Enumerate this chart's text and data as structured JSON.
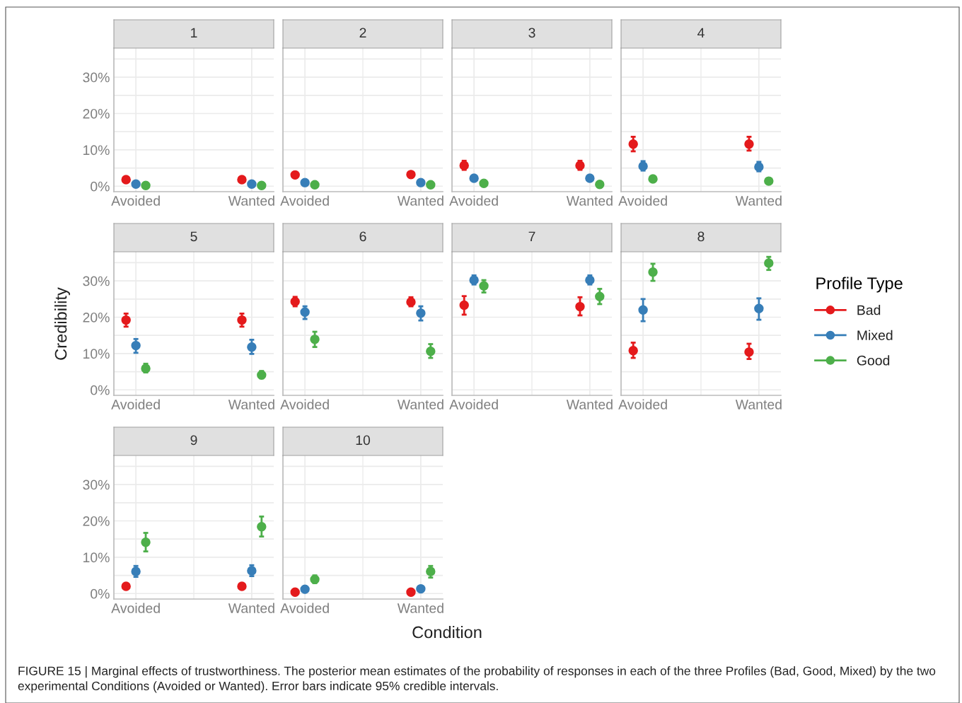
{
  "chart_data": [
    {
      "type": "scatter",
      "title": "1",
      "categories": [
        "Avoided",
        "Wanted"
      ],
      "ylim": [
        -1.5,
        38
      ],
      "yticks": [
        {
          "value": 0,
          "label": "0%"
        },
        {
          "value": 5,
          "label": null
        },
        {
          "value": 10,
          "label": "10%"
        },
        {
          "value": 15,
          "label": null
        },
        {
          "value": 20,
          "label": "20%"
        },
        {
          "value": 25,
          "label": null
        },
        {
          "value": 30,
          "label": "30%"
        },
        {
          "value": 35,
          "label": null
        }
      ],
      "grid": true,
      "marker": "circle",
      "legend": "right",
      "legend_title": "Profile Type",
      "series": [
        {
          "name": "Bad",
          "color": "#e41a1c",
          "values": [
            1.8,
            1.8
          ],
          "errors": [
            null,
            null
          ]
        },
        {
          "name": "Mixed",
          "color": "#377eb8",
          "values": [
            0.6,
            0.6
          ],
          "errors": [
            null,
            null
          ]
        },
        {
          "name": "Good",
          "color": "#4daf4a",
          "values": [
            0.2,
            0.2
          ],
          "errors": [
            null,
            null
          ]
        }
      ]
    },
    {
      "type": "scatter",
      "title": "2",
      "categories": [
        "Avoided",
        "Wanted"
      ],
      "ylim": [
        -1.5,
        38
      ],
      "yticks": [
        {
          "value": 0,
          "label": null
        },
        {
          "value": 5,
          "label": null
        },
        {
          "value": 10,
          "label": null
        },
        {
          "value": 15,
          "label": null
        },
        {
          "value": 20,
          "label": null
        },
        {
          "value": 25,
          "label": null
        },
        {
          "value": 30,
          "label": null
        },
        {
          "value": 35,
          "label": null
        }
      ],
      "grid": true,
      "marker": "circle",
      "tick_labels": "x",
      "series": [
        {
          "color": "#e41a1c",
          "values": [
            3.1,
            3.2
          ],
          "errors": [
            null,
            null
          ]
        },
        {
          "color": "#377eb8",
          "values": [
            1.0,
            1.0
          ],
          "errors": [
            null,
            null
          ]
        },
        {
          "color": "#4daf4a",
          "values": [
            0.4,
            0.4
          ],
          "errors": [
            null,
            null
          ]
        }
      ]
    },
    {
      "type": "scatter",
      "title": "3",
      "categories": [
        "Avoided",
        "Wanted"
      ],
      "ylim": [
        -1.5,
        38
      ],
      "yticks": [
        {
          "value": 0,
          "label": null
        },
        {
          "value": 5,
          "label": null
        },
        {
          "value": 10,
          "label": null
        },
        {
          "value": 15,
          "label": null
        },
        {
          "value": 20,
          "label": null
        },
        {
          "value": 25,
          "label": null
        },
        {
          "value": 30,
          "label": null
        },
        {
          "value": 35,
          "label": null
        }
      ],
      "grid": true,
      "marker": "circle",
      "tick_labels": "x",
      "series": [
        {
          "color": "#e41a1c",
          "values": [
            5.7,
            5.7
          ],
          "errors": [
            [
              4.5,
              7.0
            ],
            [
              4.5,
              7.0
            ]
          ]
        },
        {
          "color": "#377eb8",
          "values": [
            2.2,
            2.2
          ],
          "errors": [
            null,
            null
          ]
        },
        {
          "color": "#4daf4a",
          "values": [
            0.8,
            0.5
          ],
          "errors": [
            null,
            null
          ]
        }
      ]
    },
    {
      "type": "scatter",
      "title": "4",
      "categories": [
        "Avoided",
        "Wanted"
      ],
      "ylim": [
        -1.5,
        38
      ],
      "yticks": [
        {
          "value": 0,
          "label": null
        },
        {
          "value": 5,
          "label": null
        },
        {
          "value": 10,
          "label": null
        },
        {
          "value": 15,
          "label": null
        },
        {
          "value": 20,
          "label": null
        },
        {
          "value": 25,
          "label": null
        },
        {
          "value": 30,
          "label": null
        },
        {
          "value": 35,
          "label": null
        }
      ],
      "grid": true,
      "marker": "circle",
      "tick_labels": "x",
      "series": [
        {
          "color": "#e41a1c",
          "values": [
            11.6,
            11.6
          ],
          "errors": [
            [
              9.6,
              13.6
            ],
            [
              9.8,
              13.6
            ]
          ]
        },
        {
          "color": "#377eb8",
          "values": [
            5.5,
            5.3
          ],
          "errors": [
            [
              4.3,
              6.9
            ],
            [
              4.1,
              6.7
            ]
          ]
        },
        {
          "color": "#4daf4a",
          "values": [
            2.0,
            1.4
          ],
          "errors": [
            null,
            null
          ]
        }
      ]
    },
    {
      "type": "scatter",
      "title": "5",
      "categories": [
        "Avoided",
        "Wanted"
      ],
      "ylim": [
        -1.5,
        38
      ],
      "yticks": [
        {
          "value": 0,
          "label": "0%"
        },
        {
          "value": 5,
          "label": null
        },
        {
          "value": 10,
          "label": "10%"
        },
        {
          "value": 15,
          "label": null
        },
        {
          "value": 20,
          "label": "20%"
        },
        {
          "value": 25,
          "label": null
        },
        {
          "value": 30,
          "label": "30%"
        },
        {
          "value": 35,
          "label": null
        }
      ],
      "grid": true,
      "marker": "circle",
      "ylabel": "Credibility",
      "series": [
        {
          "color": "#e41a1c",
          "values": [
            19.2,
            19.2
          ],
          "errors": [
            [
              17.4,
              21.0
            ],
            [
              17.4,
              21.0
            ]
          ]
        },
        {
          "color": "#377eb8",
          "values": [
            12.2,
            11.8
          ],
          "errors": [
            [
              10.2,
              14.0
            ],
            [
              9.9,
              13.8
            ]
          ]
        },
        {
          "color": "#4daf4a",
          "values": [
            5.9,
            4.1
          ],
          "errors": [
            [
              4.8,
              7.2
            ],
            [
              3.2,
              5.2
            ]
          ]
        }
      ]
    },
    {
      "type": "scatter",
      "title": "6",
      "categories": [
        "Avoided",
        "Wanted"
      ],
      "ylim": [
        -1.5,
        38
      ],
      "yticks": [
        {
          "value": 0,
          "label": null
        },
        {
          "value": 5,
          "label": null
        },
        {
          "value": 10,
          "label": null
        },
        {
          "value": 15,
          "label": null
        },
        {
          "value": 20,
          "label": null
        },
        {
          "value": 25,
          "label": null
        },
        {
          "value": 30,
          "label": null
        },
        {
          "value": 35,
          "label": null
        }
      ],
      "grid": true,
      "marker": "circle",
      "tick_labels": "x",
      "series": [
        {
          "color": "#e41a1c",
          "values": [
            24.3,
            24.2
          ],
          "errors": [
            [
              23.0,
              25.6
            ],
            [
              23.0,
              25.5
            ]
          ]
        },
        {
          "color": "#377eb8",
          "values": [
            21.4,
            21.1
          ],
          "errors": [
            [
              19.5,
              23.0
            ],
            [
              19.1,
              23.0
            ]
          ]
        },
        {
          "color": "#4daf4a",
          "values": [
            13.9,
            10.6
          ],
          "errors": [
            [
              11.8,
              16.0
            ],
            [
              8.8,
              12.6
            ]
          ]
        }
      ]
    },
    {
      "type": "scatter",
      "title": "7",
      "categories": [
        "Avoided",
        "Wanted"
      ],
      "ylim": [
        -1.5,
        38
      ],
      "yticks": [
        {
          "value": 0,
          "label": null
        },
        {
          "value": 5,
          "label": null
        },
        {
          "value": 10,
          "label": null
        },
        {
          "value": 15,
          "label": null
        },
        {
          "value": 20,
          "label": null
        },
        {
          "value": 25,
          "label": null
        },
        {
          "value": 30,
          "label": null
        },
        {
          "value": 35,
          "label": null
        }
      ],
      "grid": true,
      "marker": "circle",
      "tick_labels": "x",
      "series": [
        {
          "color": "#e41a1c",
          "values": [
            23.3,
            22.9
          ],
          "errors": [
            [
              20.7,
              25.8
            ],
            [
              20.5,
              25.5
            ]
          ]
        },
        {
          "color": "#377eb8",
          "values": [
            30.2,
            30.2
          ],
          "errors": [
            [
              29.0,
              31.5
            ],
            [
              29.0,
              31.5
            ]
          ]
        },
        {
          "color": "#4daf4a",
          "values": [
            28.6,
            25.7
          ],
          "errors": [
            [
              26.8,
              30.2
            ],
            [
              23.6,
              27.8
            ]
          ]
        }
      ]
    },
    {
      "type": "scatter",
      "title": "8",
      "categories": [
        "Avoided",
        "Wanted"
      ],
      "ylim": [
        -1.5,
        38
      ],
      "yticks": [
        {
          "value": 0,
          "label": null
        },
        {
          "value": 5,
          "label": null
        },
        {
          "value": 10,
          "label": null
        },
        {
          "value": 15,
          "label": null
        },
        {
          "value": 20,
          "label": null
        },
        {
          "value": 25,
          "label": null
        },
        {
          "value": 30,
          "label": null
        },
        {
          "value": 35,
          "label": null
        }
      ],
      "grid": true,
      "marker": "circle",
      "tick_labels": "x",
      "series": [
        {
          "color": "#e41a1c",
          "values": [
            10.8,
            10.4
          ],
          "errors": [
            [
              8.8,
              13.0
            ],
            [
              8.5,
              12.7
            ]
          ]
        },
        {
          "color": "#377eb8",
          "values": [
            22.0,
            22.4
          ],
          "errors": [
            [
              18.9,
              25.0
            ],
            [
              19.3,
              25.2
            ]
          ]
        },
        {
          "color": "#4daf4a",
          "values": [
            32.4,
            34.9
          ],
          "errors": [
            [
              30.0,
              34.7
            ],
            [
              33.0,
              36.6
            ]
          ]
        }
      ]
    },
    {
      "type": "scatter",
      "title": "9",
      "categories": [
        "Avoided",
        "Wanted"
      ],
      "ylim": [
        -1.5,
        38
      ],
      "yticks": [
        {
          "value": 0,
          "label": "0%"
        },
        {
          "value": 5,
          "label": null
        },
        {
          "value": 10,
          "label": "10%"
        },
        {
          "value": 15,
          "label": null
        },
        {
          "value": 20,
          "label": "20%"
        },
        {
          "value": 25,
          "label": null
        },
        {
          "value": 30,
          "label": "30%"
        },
        {
          "value": 35,
          "label": null
        }
      ],
      "grid": true,
      "marker": "circle",
      "series": [
        {
          "color": "#e41a1c",
          "values": [
            2.0,
            2.0
          ],
          "errors": [
            null,
            null
          ]
        },
        {
          "color": "#377eb8",
          "values": [
            6.1,
            6.3
          ],
          "errors": [
            [
              4.6,
              7.6
            ],
            [
              4.8,
              7.8
            ]
          ]
        },
        {
          "color": "#4daf4a",
          "values": [
            14.1,
            18.4
          ],
          "errors": [
            [
              11.6,
              16.7
            ],
            [
              15.7,
              21.2
            ]
          ]
        }
      ]
    },
    {
      "type": "scatter",
      "title": "10",
      "categories": [
        "Avoided",
        "Wanted"
      ],
      "ylim": [
        -1.5,
        38
      ],
      "yticks": [
        {
          "value": 0,
          "label": null
        },
        {
          "value": 5,
          "label": null
        },
        {
          "value": 10,
          "label": null
        },
        {
          "value": 15,
          "label": null
        },
        {
          "value": 20,
          "label": null
        },
        {
          "value": 25,
          "label": null
        },
        {
          "value": 30,
          "label": null
        },
        {
          "value": 35,
          "label": null
        }
      ],
      "grid": true,
      "marker": "circle",
      "tick_labels": "x",
      "xlabel": "Condition",
      "annotations": [
        "FIGURE 15 | Marginal effects of trustworthiness. The posterior mean estimates of the probability of responses in each of the three Profiles (Bad, Good, Mixed) by the two experimental Conditions (Avoided or Wanted). Error bars indicate 95% credible intervals."
      ],
      "series": [
        {
          "color": "#e41a1c",
          "values": [
            0.4,
            0.4
          ],
          "errors": [
            null,
            null
          ]
        },
        {
          "color": "#377eb8",
          "values": [
            1.2,
            1.3
          ],
          "errors": [
            null,
            null
          ]
        },
        {
          "color": "#4daf4a",
          "values": [
            3.9,
            6.1
          ],
          "errors": [
            [
              2.9,
              5.0
            ],
            [
              4.4,
              7.6
            ]
          ]
        }
      ]
    }
  ]
}
